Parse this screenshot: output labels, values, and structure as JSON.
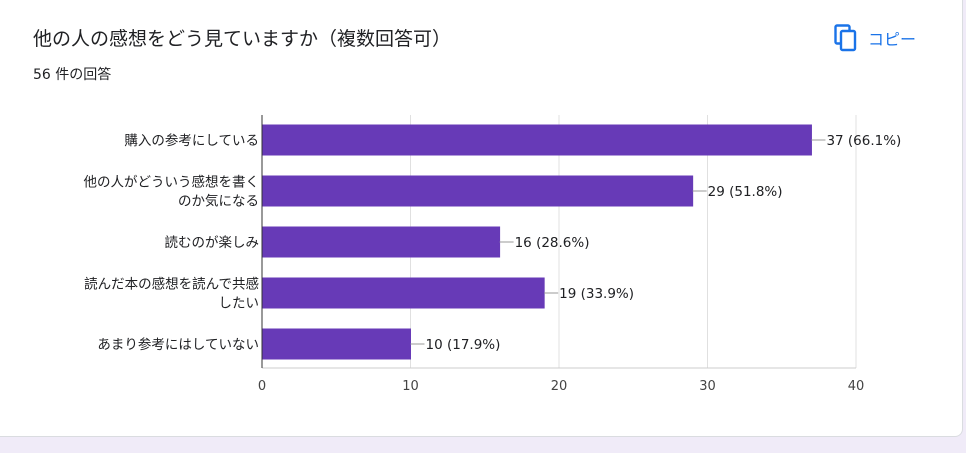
{
  "header": {
    "title": "他の人の感想をどう見ていますか（複数回答可）",
    "response_count": "56 件の回答",
    "copy_label": "コピー"
  },
  "colors": {
    "bar": "#673ab7",
    "accent": "#1a73e8"
  },
  "icons": {
    "copy": "copy-icon"
  },
  "chart_data": {
    "type": "bar",
    "orientation": "horizontal",
    "categories": [
      [
        "購入の参考にしている"
      ],
      [
        "他の人がどういう感想を書く",
        "のか気になる"
      ],
      [
        "読むのが楽しみ"
      ],
      [
        "読んだ本の感想を読んで共感",
        "したい"
      ],
      [
        "あまり参考にはしていない"
      ]
    ],
    "values": [
      37,
      29,
      16,
      19,
      10
    ],
    "value_labels": [
      "37 (66.1%)",
      "29 (51.8%)",
      "16 (28.6%)",
      "19 (33.9%)",
      "10 (17.9%)"
    ],
    "xlim": [
      0,
      40
    ],
    "xticks": [
      0,
      10,
      20,
      30,
      40
    ],
    "grid": true
  }
}
